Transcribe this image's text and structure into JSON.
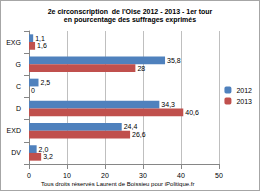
{
  "chart_data": {
    "type": "bar",
    "title": "2e circonscription  de l'Oise 2012 - 2013 - 1er tour",
    "subtitle": "en pourcentage des suffrages exprimés",
    "annotations": [
      "Tous droits réservés Laurent de Boissieu pour iPolitique.fr"
    ],
    "categories": [
      "EXG",
      "G",
      "C",
      "D",
      "EXD",
      "DV"
    ],
    "series": [
      {
        "name": "2012",
        "color": "#4f81bd",
        "values": [
          1.1,
          35.8,
          2.5,
          34.3,
          24.4,
          2.0
        ],
        "value_labels": [
          "1,1",
          "35,8",
          "2,5",
          "34,3",
          "24,4",
          "2,0"
        ]
      },
      {
        "name": "2013",
        "color": "#c0504d",
        "values": [
          1.6,
          28,
          0,
          40.6,
          26.6,
          3.2
        ],
        "value_labels": [
          "1,6",
          "28",
          "0",
          "40,6",
          "26,6",
          "3,2"
        ]
      }
    ],
    "xlim": [
      0,
      50
    ],
    "xticks": [
      0,
      10,
      20,
      30,
      40,
      50
    ],
    "orientation": "horizontal",
    "grid": true,
    "legend": "right",
    "data_labels": true
  }
}
